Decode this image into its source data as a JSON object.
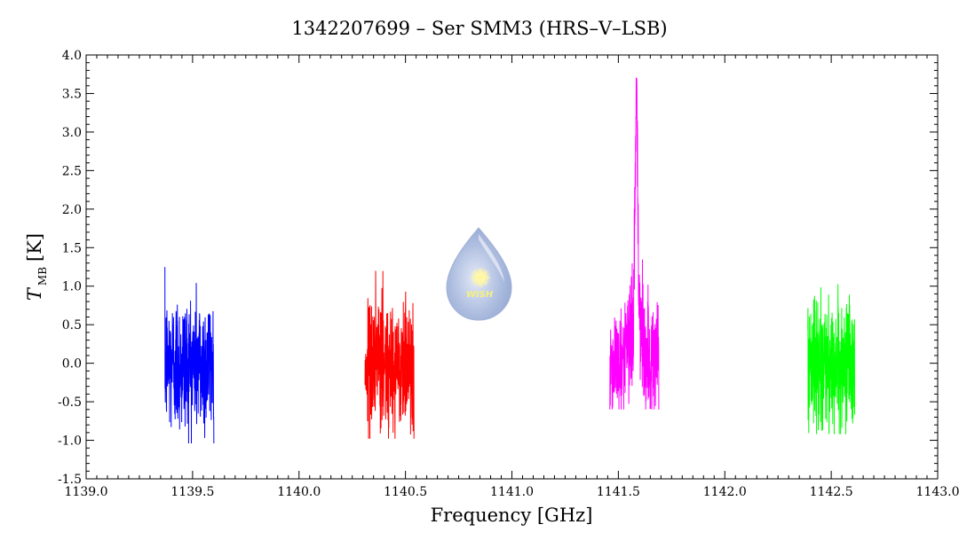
{
  "chart_data": {
    "type": "line",
    "title": "1342207699 – Ser SMM3 (HRS–V–LSB)",
    "xlabel": "Frequency [GHz]",
    "ylabel_main": "T",
    "ylabel_sub": "MB",
    "ylabel_unit": "[K]",
    "xlim": [
      1139.0,
      1143.0
    ],
    "ylim": [
      -1.5,
      4.0
    ],
    "x_ticks": [
      "1139.0",
      "1139.5",
      "1140.0",
      "1140.5",
      "1141.0",
      "1141.5",
      "1142.0",
      "1142.5",
      "1143.0"
    ],
    "y_ticks": [
      "-1.5",
      "-1.0",
      "-0.5",
      "0.0",
      "0.5",
      "1.0",
      "1.5",
      "2.0",
      "2.5",
      "3.0",
      "3.5",
      "4.0"
    ],
    "grid": false,
    "series": [
      {
        "color": "#0000ff",
        "x_range": [
          1139.37,
          1139.6
        ],
        "min": -1.04,
        "max": 1.38,
        "noise_sigma": 0.45,
        "peak": null
      },
      {
        "color": "#ff0000",
        "x_range": [
          1140.31,
          1140.54
        ],
        "min": -0.98,
        "max": 1.2,
        "noise_sigma": 0.42,
        "peak": null
      },
      {
        "color": "#ff00ff",
        "x_range": [
          1141.46,
          1141.69
        ],
        "min": -0.6,
        "max": 3.7,
        "noise_sigma": 0.38,
        "peak": {
          "center": 1141.585,
          "amplitude": 2.9,
          "width": 0.006
        }
      },
      {
        "color": "#00ff00",
        "x_range": [
          1142.39,
          1142.61
        ],
        "min": -0.92,
        "max": 1.07,
        "noise_sigma": 0.38,
        "peak": null
      }
    ]
  },
  "logo": {
    "text": "WISH"
  }
}
